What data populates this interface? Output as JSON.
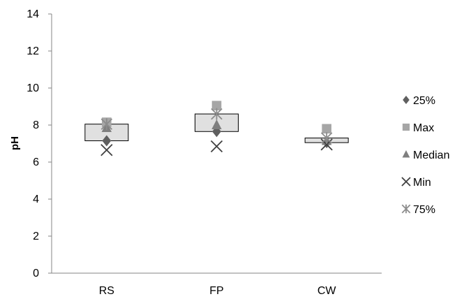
{
  "chart_data": {
    "type": "box",
    "title": "",
    "xlabel": "",
    "ylabel": "pH",
    "ylim": [
      0,
      14
    ],
    "yticks": [
      "0",
      "2",
      "4",
      "6",
      "8",
      "10",
      "12",
      "14"
    ],
    "categories": [
      "RS",
      "FP",
      "CW"
    ],
    "grid": false,
    "legend_position": "right",
    "series": [
      {
        "name": "25%",
        "marker": "diamond",
        "color": "#5f5f5f",
        "values": [
          7.15,
          7.65,
          7.05
        ]
      },
      {
        "name": "Max",
        "marker": "square",
        "color": "#a6a6a6",
        "values": [
          8.15,
          9.05,
          7.8
        ]
      },
      {
        "name": "Median",
        "marker": "triangle",
        "color": "#7f7f7f",
        "values": [
          7.85,
          8.0,
          7.15
        ]
      },
      {
        "name": "Min",
        "marker": "x",
        "color": "#404040",
        "values": [
          6.65,
          6.85,
          6.95
        ]
      },
      {
        "name": "75%",
        "marker": "star",
        "color": "#8c8c8c",
        "values": [
          8.05,
          8.6,
          7.3
        ]
      }
    ],
    "boxes": [
      {
        "category": "RS",
        "q1": 7.15,
        "q3": 8.05
      },
      {
        "category": "FP",
        "q1": 7.65,
        "q3": 8.6
      },
      {
        "category": "CW",
        "q1": 7.05,
        "q3": 7.3
      }
    ],
    "box_fill": "#e0e0e0",
    "box_stroke": "#000000"
  }
}
